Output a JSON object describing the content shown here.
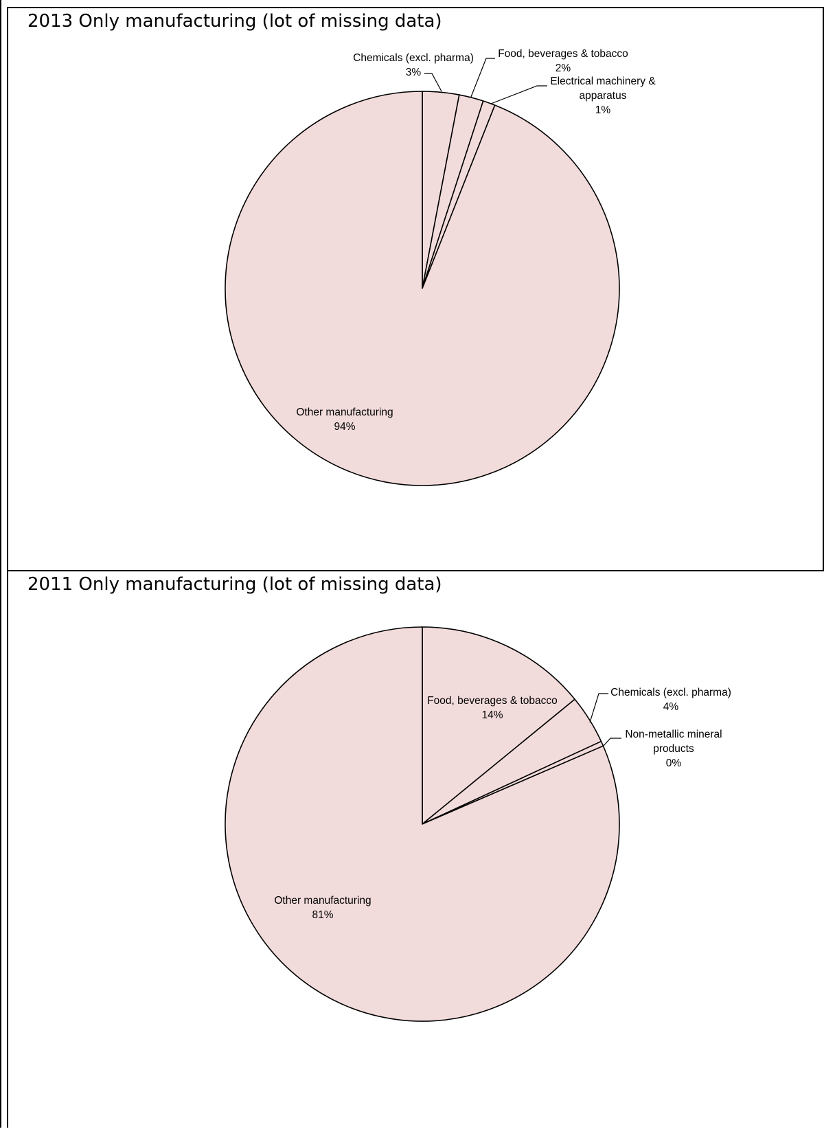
{
  "chart_data": [
    {
      "type": "pie",
      "title": "2013 Only manufacturing (lot of missing data)",
      "slices": [
        {
          "label": "Chemicals (excl. pharma)",
          "value": 3,
          "value_label": "3%"
        },
        {
          "label": "Food, beverages & tobacco",
          "value": 2,
          "value_label": "2%"
        },
        {
          "label": "Electrical machinery &\napparatus",
          "value": 1,
          "value_label": "1%"
        },
        {
          "label": "Other manufacturing",
          "value": 94,
          "value_label": "94%"
        }
      ],
      "slice_color": "#f2dcdb",
      "edge_color": "#000000"
    },
    {
      "type": "pie",
      "title": "2011 Only manufacturing (lot of missing data)",
      "slices": [
        {
          "label": "Food, beverages & tobacco",
          "value": 14,
          "value_label": "14%"
        },
        {
          "label": "Chemicals (excl. pharma)",
          "value": 4,
          "value_label": "4%"
        },
        {
          "label": "Non-metallic mineral\nproducts",
          "value": 0.4,
          "value_label": "0%"
        },
        {
          "label": "Other manufacturing",
          "value": 81,
          "value_label": "81%"
        }
      ],
      "slice_color": "#f2dcdb",
      "edge_color": "#000000"
    }
  ]
}
